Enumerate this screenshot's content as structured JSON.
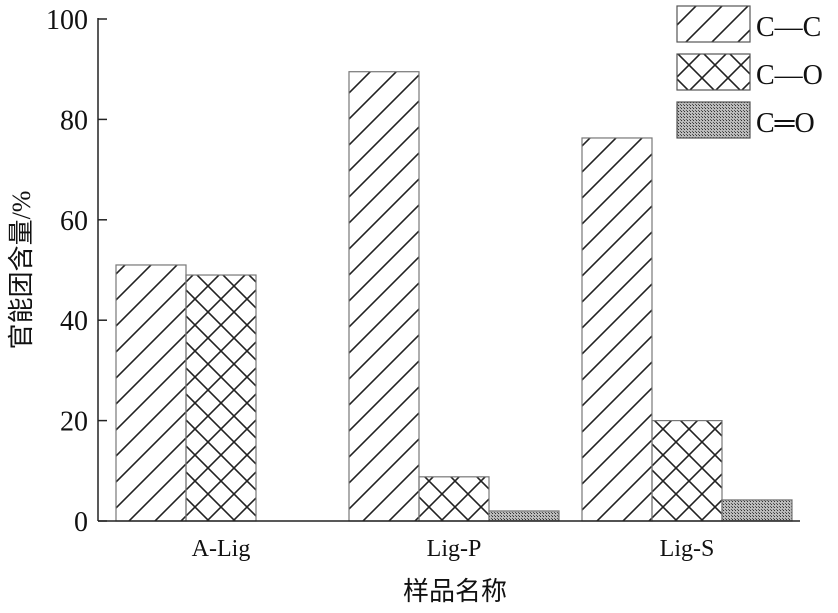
{
  "chart_data": {
    "type": "bar",
    "xlabel": "样品名称",
    "ylabel": "官能团含量/%",
    "ylim": [
      0,
      100
    ],
    "yticks": [
      0,
      20,
      40,
      60,
      80,
      100
    ],
    "categories": [
      "A-Lig",
      "Lig-P",
      "Lig-S"
    ],
    "series": [
      {
        "name": "C—C",
        "pattern": "diagonal-hatch",
        "values": [
          51,
          89.5,
          76.3
        ]
      },
      {
        "name": "C—O",
        "pattern": "cross-hatch",
        "values": [
          49,
          8.8,
          20
        ]
      },
      {
        "name": "C═O",
        "pattern": "dense-dots",
        "values": [
          0,
          2,
          4.2
        ]
      }
    ],
    "legend_position": "top-right",
    "grid": false
  }
}
